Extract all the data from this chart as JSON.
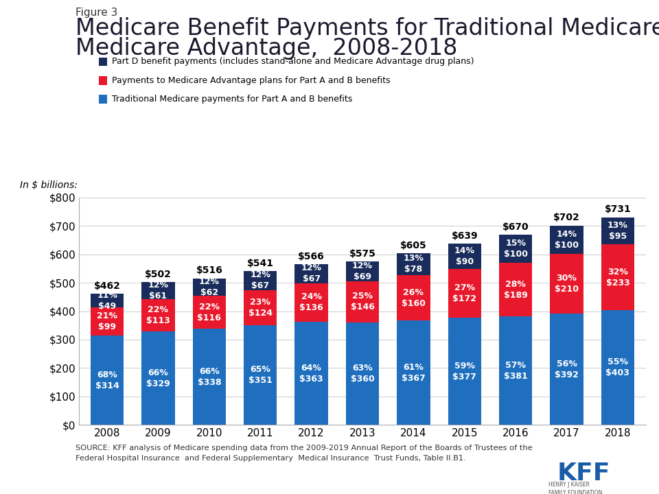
{
  "years": [
    "2008",
    "2009",
    "2010",
    "2011",
    "2012",
    "2013",
    "2014",
    "2015",
    "2016",
    "2017",
    "2018"
  ],
  "traditional": [
    314,
    329,
    338,
    351,
    363,
    360,
    367,
    377,
    381,
    392,
    403
  ],
  "ma_ab": [
    99,
    113,
    116,
    124,
    136,
    146,
    160,
    172,
    189,
    210,
    233
  ],
  "part_d": [
    49,
    61,
    62,
    67,
    67,
    69,
    78,
    90,
    100,
    100,
    95
  ],
  "totals": [
    462,
    502,
    516,
    541,
    566,
    575,
    605,
    639,
    670,
    702,
    731
  ],
  "trad_pct": [
    "68%",
    "66%",
    "66%",
    "65%",
    "64%",
    "63%",
    "61%",
    "59%",
    "57%",
    "56%",
    "55%"
  ],
  "ma_pct": [
    "21%",
    "22%",
    "22%",
    "23%",
    "24%",
    "25%",
    "26%",
    "27%",
    "28%",
    "30%",
    "32%"
  ],
  "pd_pct": [
    "11%",
    "12%",
    "12%",
    "12%",
    "12%",
    "12%",
    "13%",
    "14%",
    "15%",
    "14%",
    "13%"
  ],
  "color_traditional": "#1F6FBE",
  "color_ma": "#E8192C",
  "color_partd": "#1A2C5B",
  "color_background": "#FFFFFF",
  "color_sidebar": "#1A5CA8",
  "title_line1": "Medicare Benefit Payments for Traditional Medicare and",
  "title_line2": "Medicare Advantage,  2008-2018",
  "figure_label": "Figure 3",
  "ylabel": "In $ billions:",
  "ylim": [
    0,
    800
  ],
  "legend_partd": "Part D benefit payments (includes stand-alone and Medicare Advantage drug plans)",
  "legend_ma": "Payments to Medicare Advantage plans for Part A and B benefits",
  "legend_trad": "Traditional Medicare payments for Part A and B benefits",
  "source_text": "SOURCE: KFF analysis of Medicare spending data from the 2009-2019 Annual Report of the Boards of Trustees of the\nFederal Hospital Insurance  and Federal Supplementary  Medical Insurance  Trust Funds, Table II.B1.",
  "title_fontsize": 24,
  "figure_label_fontsize": 11,
  "label_fontsize": 9,
  "tick_fontsize": 11
}
